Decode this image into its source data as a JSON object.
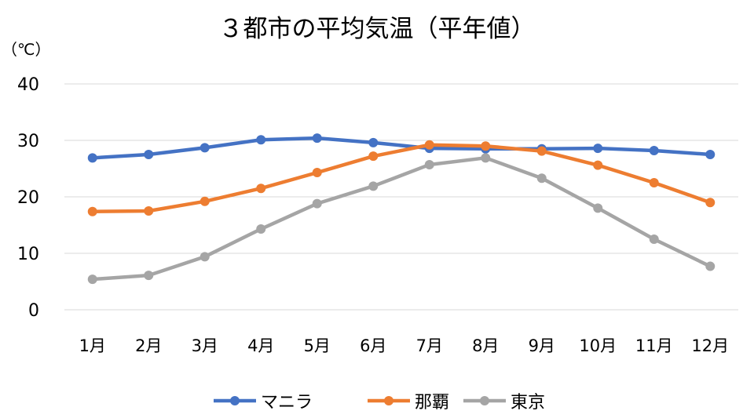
{
  "chart_data": {
    "type": "line",
    "title": "３都市の平均気温（平年値）",
    "ylabel": "（℃）",
    "xlabel": "",
    "categories": [
      "1月",
      "2月",
      "3月",
      "4月",
      "5月",
      "6月",
      "7月",
      "8月",
      "9月",
      "10月",
      "11月",
      "12月"
    ],
    "ylim": [
      0,
      40
    ],
    "yticks": [
      0,
      10,
      20,
      30,
      40
    ],
    "grid": true,
    "legend": "bottom",
    "series": [
      {
        "name": "マニラ",
        "color": "#4472C4",
        "values": [
          26.9,
          27.5,
          28.7,
          30.1,
          30.4,
          29.6,
          28.6,
          28.5,
          28.5,
          28.6,
          28.2,
          27.5
        ]
      },
      {
        "name": "那覇",
        "color": "#ED7D31",
        "values": [
          17.4,
          17.5,
          19.2,
          21.5,
          24.3,
          27.2,
          29.2,
          29.0,
          28.1,
          25.6,
          22.5,
          19.0
        ]
      },
      {
        "name": "東京",
        "color": "#A5A5A5",
        "values": [
          5.4,
          6.1,
          9.4,
          14.3,
          18.8,
          21.9,
          25.7,
          26.9,
          23.3,
          18.0,
          12.5,
          7.7
        ]
      }
    ]
  }
}
